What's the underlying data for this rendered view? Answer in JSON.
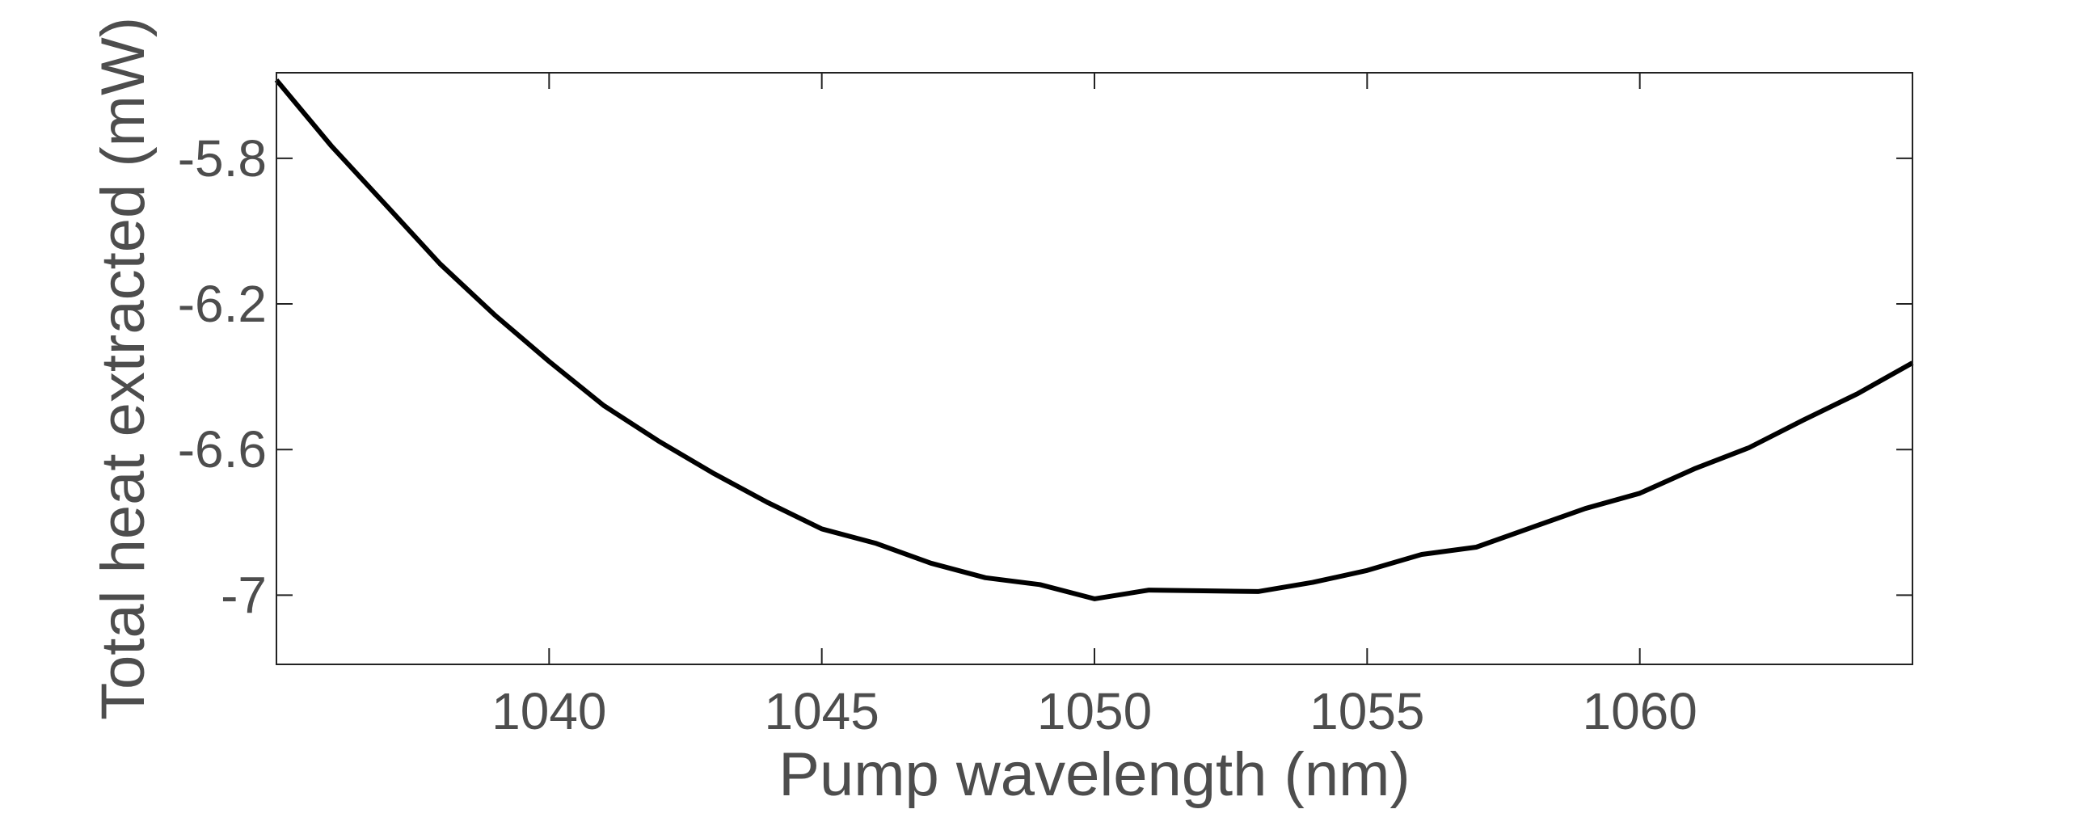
{
  "chart_data": {
    "type": "line",
    "title": "",
    "xlabel": "Pump wavelength (nm)",
    "ylabel": "Total heat extracted (mW)",
    "xlim": [
      1035,
      1065
    ],
    "ylim": [
      -7.19,
      -5.565
    ],
    "xticks": [
      1040,
      1045,
      1050,
      1055,
      1060
    ],
    "xtick_labels": [
      "1040",
      "1045",
      "1050",
      "1055",
      "1060"
    ],
    "yticks": [
      -5.8,
      -6.2,
      -6.6,
      -7
    ],
    "ytick_labels": [
      "-5.8",
      "-6.2",
      "-6.6",
      "-7"
    ],
    "grid": false,
    "legend": "none",
    "line_color": "#000000",
    "series": [
      {
        "x": [
          1035,
          1036,
          1037,
          1038,
          1039,
          1040,
          1041,
          1042,
          1043,
          1044,
          1045,
          1046,
          1047,
          1048,
          1049,
          1050,
          1051,
          1052,
          1053,
          1054,
          1055,
          1056,
          1057,
          1058,
          1059,
          1060,
          1061,
          1062,
          1063,
          1064,
          1065
        ],
        "y": [
          -5.585,
          -5.765,
          -5.927,
          -6.09,
          -6.23,
          -6.358,
          -6.479,
          -6.576,
          -6.664,
          -6.745,
          -6.818,
          -6.858,
          -6.912,
          -6.952,
          -6.971,
          -7.01,
          -6.986,
          -6.988,
          -6.99,
          -6.965,
          -6.932,
          -6.888,
          -6.868,
          -6.815,
          -6.762,
          -6.72,
          -6.653,
          -6.595,
          -6.519,
          -6.446,
          -6.362
        ]
      }
    ]
  }
}
